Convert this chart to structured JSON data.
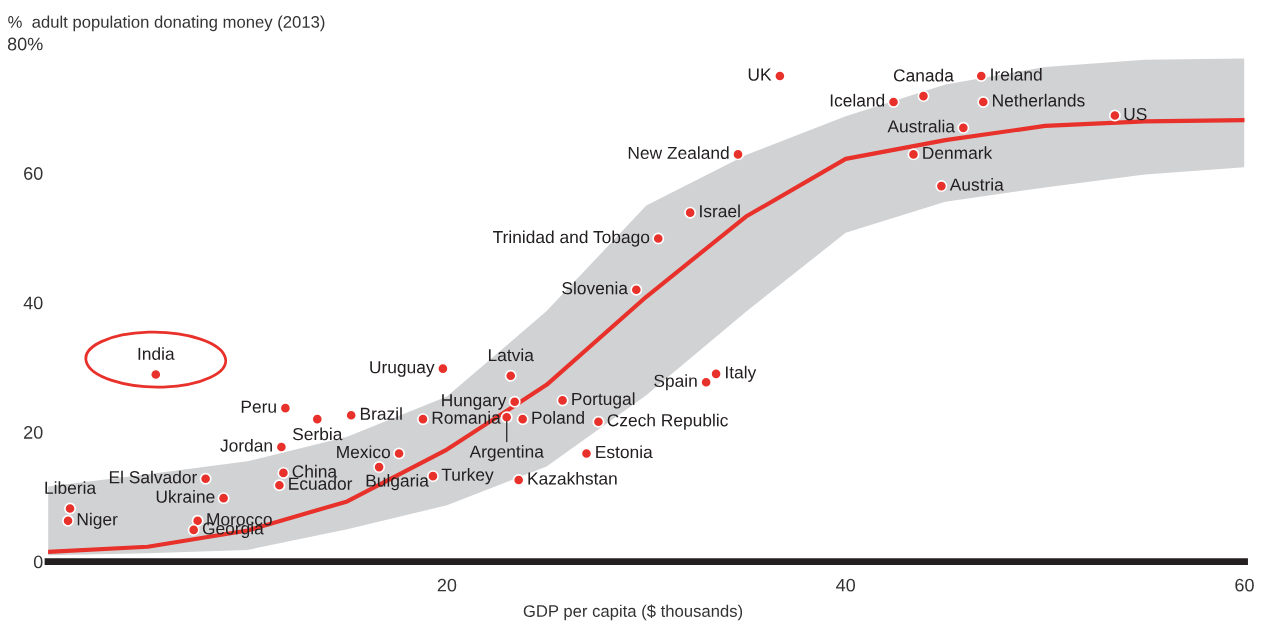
{
  "chart_data": {
    "type": "scatter",
    "ylabel": "%  adult population donating money (2013)",
    "xlabel": "GDP per capita ($ thousands)",
    "xlim": [
      0,
      60
    ],
    "xticks": [
      20,
      40,
      60
    ],
    "ylim": [
      0,
      80
    ],
    "yticks": [
      0,
      20,
      40,
      60,
      {
        "value": 80,
        "label": "80%"
      }
    ],
    "grid": false,
    "series": [
      {
        "type": "line",
        "color": "#e8312a",
        "x": [
          0,
          5,
          10,
          15,
          20,
          25,
          30,
          35,
          40,
          45,
          50,
          55,
          60
        ],
        "values": [
          1.5,
          2.3,
          4.8,
          9.3,
          17.3,
          27.3,
          40.9,
          53.3,
          62.2,
          65.1,
          67.3,
          68.0,
          68.2
        ],
        "lower": [
          1.0,
          1.3,
          1.8,
          5.0,
          8.7,
          14.7,
          25.7,
          38.6,
          50.8,
          55.6,
          57.8,
          59.8,
          60.9
        ],
        "upper": [
          11.6,
          13.5,
          15.5,
          19.3,
          25.5,
          38.7,
          55.0,
          62.8,
          68.8,
          73.7,
          76.4,
          77.5,
          77.7
        ]
      },
      {
        "marker": "circle",
        "color": "#e8312a",
        "x": [
          36.7,
          43.9,
          46.8,
          42.4,
          46.9,
          53.5,
          45.9,
          34.6,
          43.4,
          44.8,
          32.2,
          30.6,
          29.5,
          33.5,
          33.0,
          5.4,
          19.8,
          23.2,
          11.9,
          23.4,
          25.8,
          15.2,
          13.5,
          18.8,
          23.0,
          23.8,
          27.6,
          11.7,
          17.6,
          27.0,
          16.6,
          11.8,
          19.3,
          7.9,
          23.6,
          11.6,
          8.8,
          1.1,
          1.0,
          7.5,
          7.3
        ],
        "values": [
          75.0,
          71.9,
          75.0,
          71.0,
          71.0,
          68.9,
          67.0,
          62.9,
          62.9,
          58.0,
          53.9,
          49.9,
          42.0,
          29.0,
          27.7,
          28.9,
          29.8,
          28.7,
          23.7,
          24.7,
          24.9,
          22.6,
          22.0,
          22.0,
          22.3,
          22.0,
          21.6,
          17.7,
          16.7,
          16.7,
          14.6,
          13.7,
          13.2,
          12.8,
          12.6,
          11.8,
          9.8,
          8.2,
          6.3,
          6.3,
          4.9
        ]
      }
    ],
    "annotations": [
      {
        "text": "UK",
        "x": 36.7,
        "y": 75.0
      },
      {
        "text": "Canada",
        "x": 43.9,
        "y": 71.9
      },
      {
        "text": "Ireland",
        "x": 46.8,
        "y": 75.0
      },
      {
        "text": "Iceland",
        "x": 42.4,
        "y": 71.0
      },
      {
        "text": "Netherlands",
        "x": 46.9,
        "y": 71.0
      },
      {
        "text": "US",
        "x": 53.5,
        "y": 68.9
      },
      {
        "text": "Australia",
        "x": 45.9,
        "y": 67.0
      },
      {
        "text": "New Zealand",
        "x": 34.6,
        "y": 62.9
      },
      {
        "text": "Denmark",
        "x": 43.4,
        "y": 62.9
      },
      {
        "text": "Austria",
        "x": 44.8,
        "y": 58.0
      },
      {
        "text": "Israel",
        "x": 32.2,
        "y": 53.9
      },
      {
        "text": "Trinidad and Tobago",
        "x": 30.6,
        "y": 49.9
      },
      {
        "text": "Slovenia",
        "x": 29.5,
        "y": 42.0
      },
      {
        "text": "Italy",
        "x": 33.5,
        "y": 29.0
      },
      {
        "text": "Spain",
        "x": 33.0,
        "y": 27.7
      },
      {
        "text": "India",
        "x": 5.4,
        "y": 28.9
      },
      {
        "text": "Uruguay",
        "x": 19.8,
        "y": 29.8
      },
      {
        "text": "Latvia",
        "x": 23.2,
        "y": 28.7
      },
      {
        "text": "Peru",
        "x": 11.9,
        "y": 23.7
      },
      {
        "text": "Hungary",
        "x": 23.4,
        "y": 24.7
      },
      {
        "text": "Portugal",
        "x": 25.8,
        "y": 24.9
      },
      {
        "text": "Brazil",
        "x": 15.2,
        "y": 22.6
      },
      {
        "text": "Serbia",
        "x": 13.5,
        "y": 22.0
      },
      {
        "text": "Romania",
        "x": 18.8,
        "y": 22.0
      },
      {
        "text": "Argentina",
        "x": 23.0,
        "y": 22.3
      },
      {
        "text": "Poland",
        "x": 23.8,
        "y": 22.0
      },
      {
        "text": "Czech Republic",
        "x": 27.6,
        "y": 21.6
      },
      {
        "text": "Jordan",
        "x": 11.7,
        "y": 17.7
      },
      {
        "text": "Mexico",
        "x": 17.6,
        "y": 16.7
      },
      {
        "text": "Estonia",
        "x": 27.0,
        "y": 16.7
      },
      {
        "text": "Bulgaria",
        "x": 16.6,
        "y": 14.6
      },
      {
        "text": "China",
        "x": 11.8,
        "y": 13.7
      },
      {
        "text": "Turkey",
        "x": 19.3,
        "y": 13.2
      },
      {
        "text": "El Salvador",
        "x": 7.9,
        "y": 12.8
      },
      {
        "text": "Kazakhstan",
        "x": 23.6,
        "y": 12.6
      },
      {
        "text": "Ecuador",
        "x": 11.6,
        "y": 11.8
      },
      {
        "text": "Ukraine",
        "x": 8.8,
        "y": 9.8
      },
      {
        "text": "Liberia",
        "x": 1.1,
        "y": 8.2
      },
      {
        "text": "Niger",
        "x": 1.0,
        "y": 6.3
      },
      {
        "text": "Morocco",
        "x": 7.5,
        "y": 6.3
      },
      {
        "text": "Georgia",
        "x": 7.3,
        "y": 4.9
      }
    ]
  }
}
